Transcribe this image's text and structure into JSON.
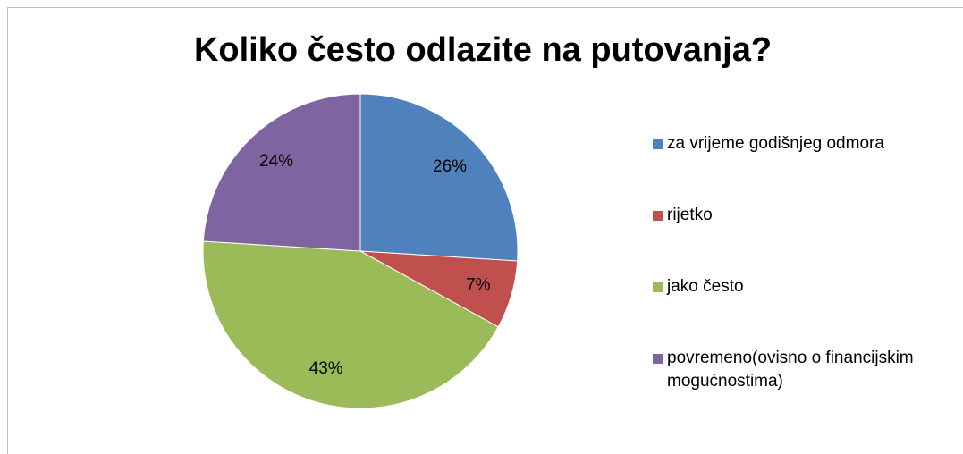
{
  "chart_data": {
    "type": "pie",
    "title": "Koliko često odlazite na putovanja?",
    "categories": [
      "za vrijeme godišnjeg odmora",
      "rijetko",
      "jako često",
      "povremeno(ovisno o financijskim mogućnostima)"
    ],
    "values": [
      26,
      7,
      43,
      24
    ],
    "value_labels": [
      "26%",
      "7%",
      "43%",
      "24%"
    ],
    "colors": [
      "#4f81bd",
      "#c0504d",
      "#9bbb59",
      "#8064a2"
    ],
    "legend": "right"
  }
}
